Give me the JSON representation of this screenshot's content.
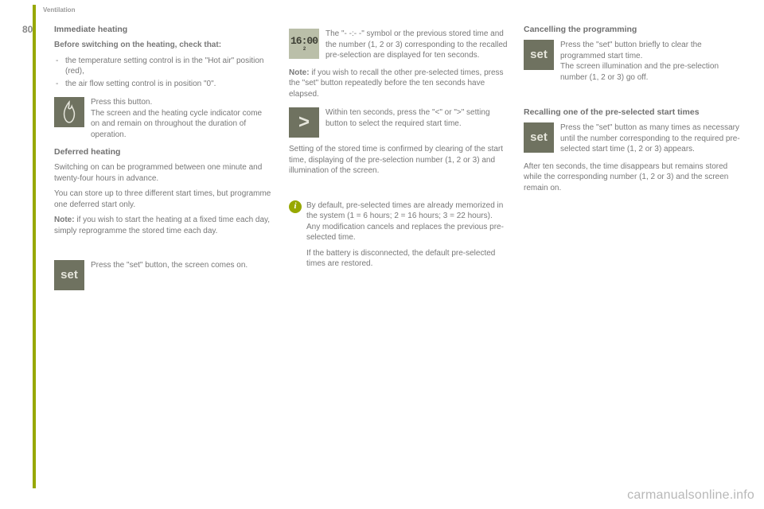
{
  "header": {
    "section": "Ventilation",
    "page": "80"
  },
  "col1": {
    "title": "Immediate heating",
    "intro": "Before switching on the heating, check that:",
    "bullets": [
      "the temperature setting control is in the \"Hot air\" position (red),",
      "the air flow setting control is in position \"0\"."
    ],
    "flame_text": "Press this button.\nThe screen and the heating cycle indicator come on and remain on throughout the duration of operation.",
    "deferred_title": "Deferred heating",
    "deferred_p1": "Switching on can be programmed between one minute and twenty-four hours in advance.",
    "deferred_p2": "You can store up to three different start times, but programme one deferred start only.",
    "deferred_note": "Note: if you wish to start the heating at a fixed time each day, simply reprogramme the stored time each day.",
    "set_text": "Press the \"set\" button, the screen comes on."
  },
  "col2": {
    "lcd_text": "16:00",
    "lcd_sub": "2",
    "lcd_para": "The \"- -:- -\" symbol or the previous stored time and the number (1, 2 or 3) corresponding to the recalled pre-selection are displayed for ten seconds.",
    "lcd_note": "Note: if you wish to recall the other pre-selected times, press the \"set\" button repeatedly before the ten seconds have elapsed.",
    "arrow_para": "Within ten seconds, press the \"<\" or \">\" setting button to select the required start time.",
    "confirm_para": "Setting of the stored time is confirmed by clearing of the start time, displaying of the pre-selection number (1, 2 or 3) and illumination of the screen.",
    "info_p1": "By default, pre-selected times are already memorized in the system (1 = 6 hours; 2 = 16 hours; 3 = 22 hours). Any modification cancels and replaces the previous pre-selected time.",
    "info_p2": "If the battery is disconnected, the default pre-selected times are restored."
  },
  "col3": {
    "cancel_title": "Cancelling the programming",
    "cancel_para": "Press the \"set\" button briefly to clear the programmed start time.\nThe screen illumination and the pre-selection number (1, 2 or 3) go off.",
    "recall_title": "Recalling one of the pre-selected start times",
    "recall_para": "Press the \"set\" button as many times as necessary until the number corresponding to the required pre-selected start time (1, 2 or 3) appears.",
    "recall_after": "After ten seconds, the time disappears but remains stored while the corresponding number (1, 2 or 3) and the screen remain on."
  },
  "icons": {
    "set": "set",
    "arrow": ">"
  },
  "watermark": "carmanualsonline.info",
  "colors": {
    "accent": "#97a800",
    "icon_bg": "#6f7260",
    "lcd_bg": "#babfa9"
  }
}
